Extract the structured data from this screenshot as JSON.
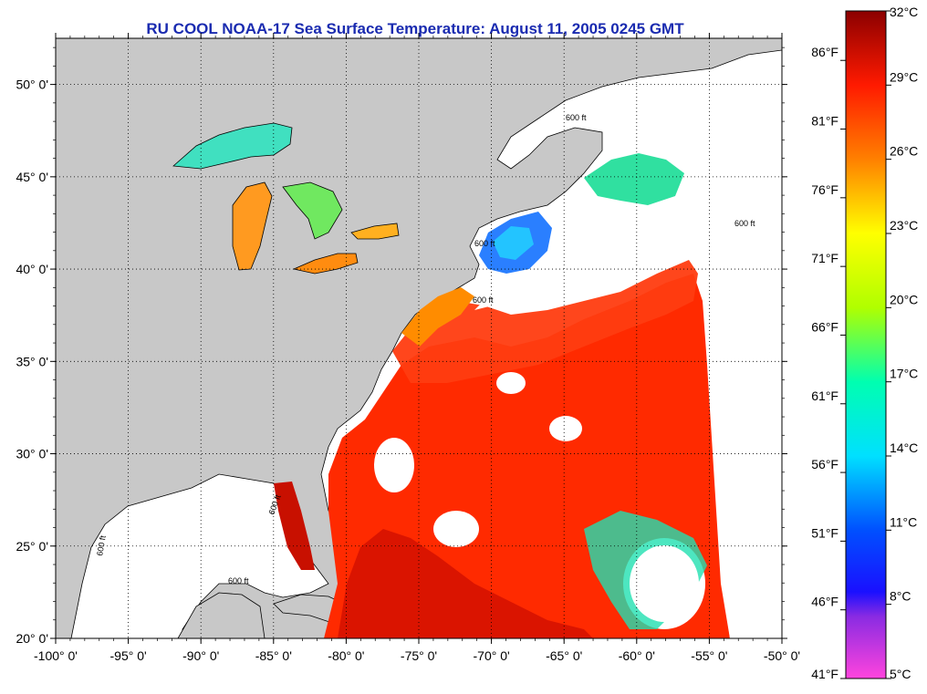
{
  "title": "RU COOL  NOAA-17  Sea Surface Temperature:  August 11, 2005 0245 GMT",
  "map": {
    "lon_labels": [
      "-100° 0'",
      "-95° 0'",
      "-90° 0'",
      "-85° 0'",
      "-80° 0'",
      "-75° 0'",
      "-70° 0'",
      "-65° 0'",
      "-60° 0'",
      "-55° 0'",
      "-50° 0'"
    ],
    "lon_values": [
      -100,
      -95,
      -90,
      -85,
      -80,
      -75,
      -70,
      -65,
      -60,
      -55,
      -50
    ],
    "lat_labels": [
      "20° 0'",
      "25° 0'",
      "30° 0'",
      "35° 0'",
      "40° 0'",
      "45° 0'",
      "50° 0'"
    ],
    "lat_values": [
      20,
      25,
      30,
      35,
      40,
      45,
      50
    ],
    "lat_range": [
      20,
      52.5
    ],
    "lon_range": [
      -100,
      -50
    ],
    "isobath_label": "600 ft",
    "land_color": "#c8c8c8",
    "cloud_color": "#ffffff"
  },
  "colorbar": {
    "celsius_labels": [
      "32°C",
      "29°C",
      "26°C",
      "23°C",
      "20°C",
      "17°C",
      "14°C",
      "11°C",
      "8°C",
      "5°C"
    ],
    "celsius_values": [
      32,
      29,
      26,
      23,
      20,
      17,
      14,
      11,
      8,
      5
    ],
    "fahrenheit_labels": [
      "86°F",
      "81°F",
      "76°F",
      "71°F",
      "66°F",
      "61°F",
      "56°F",
      "51°F",
      "46°F",
      "41°F"
    ],
    "fahrenheit_values": [
      86,
      81,
      76,
      71,
      66,
      61,
      56,
      51,
      46,
      41
    ],
    "range_c": [
      5,
      32
    ],
    "stops": [
      {
        "c": 5,
        "color": "#ff44dd"
      },
      {
        "c": 7.5,
        "color": "#8a2be2"
      },
      {
        "c": 8.5,
        "color": "#1a10ff"
      },
      {
        "c": 11,
        "color": "#0050ff"
      },
      {
        "c": 14,
        "color": "#00e0ff"
      },
      {
        "c": 17,
        "color": "#00ffb0"
      },
      {
        "c": 20,
        "color": "#b0ff00"
      },
      {
        "c": 23,
        "color": "#ffff00"
      },
      {
        "c": 26,
        "color": "#ff8000"
      },
      {
        "c": 29,
        "color": "#ff1a00"
      },
      {
        "c": 32,
        "color": "#8b0000"
      }
    ]
  }
}
